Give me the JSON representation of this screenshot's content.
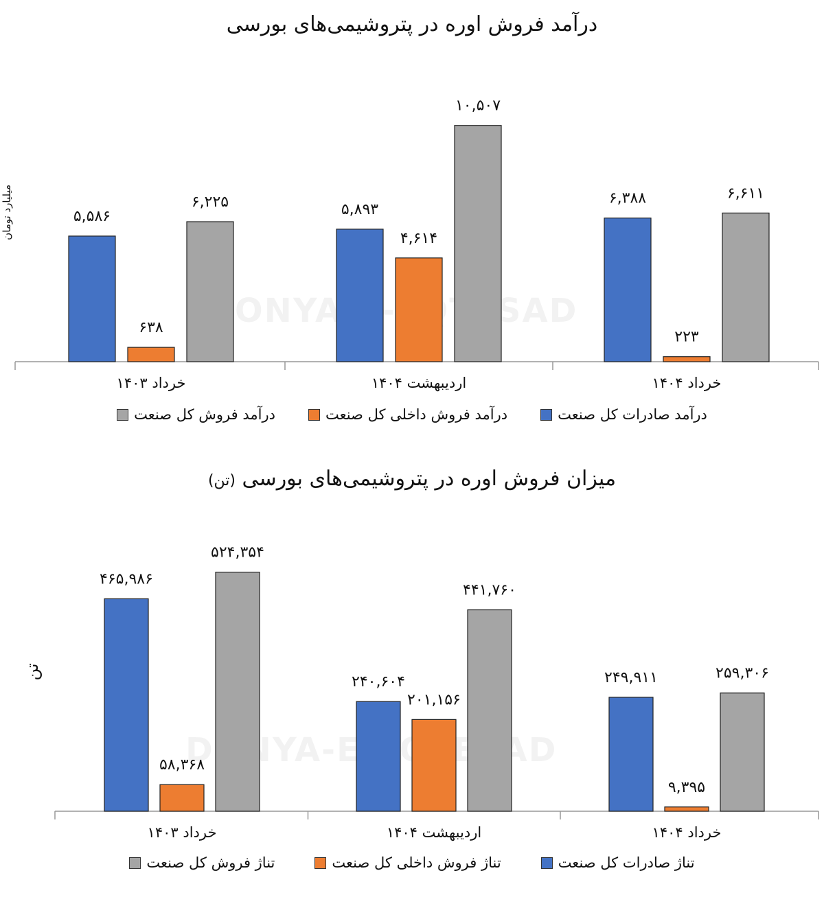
{
  "watermark": "DONYA-E-EQTESAD",
  "charts": [
    {
      "id": "chart1",
      "type": "bar",
      "title": "درآمد فروش اوره در پتروشیمی‌های بورسی",
      "title_unit": "",
      "ylabel": "میلیارد تومان",
      "categories": [
        "خرداد ۱۴۰۳",
        "اردیبهشت ۱۴۰۴",
        "خرداد ۱۴۰۴"
      ],
      "series": [
        {
          "name": "درآمد صادرات کل صنعت",
          "color": "#4472C4",
          "values": [
            5586,
            5893,
            6388
          ],
          "labels": [
            "۵,۵۸۶",
            "۵,۸۹۳",
            "۶,۳۸۸"
          ]
        },
        {
          "name": "درآمد فروش داخلی کل صنعت",
          "color": "#ED7D31",
          "values": [
            638,
            4614,
            223
          ],
          "labels": [
            "۶۳۸",
            "۴,۶۱۴",
            "۲۲۳"
          ]
        },
        {
          "name": "درآمد فروش کل صنعت",
          "color": "#A5A5A5",
          "values": [
            6225,
            10507,
            6611
          ],
          "labels": [
            "۶,۲۲۵",
            "۱۰,۵۰۷",
            "۶,۶۱۱"
          ]
        }
      ],
      "ylim": [
        0,
        11200
      ]
    },
    {
      "id": "chart2",
      "type": "bar",
      "title": "میزان فروش اوره در پتروشیمی‌های بورسی",
      "title_unit": "(تن)",
      "ylabel": "تن",
      "categories": [
        "خرداد ۱۴۰۳",
        "اردیبهشت ۱۴۰۴",
        "خرداد ۱۴۰۴"
      ],
      "series": [
        {
          "name": "تناژ صادرات کل صنعت",
          "color": "#4472C4",
          "values": [
            465986,
            240604,
            249911
          ],
          "labels": [
            "۴۶۵,۹۸۶",
            "۲۴۰,۶۰۴",
            "۲۴۹,۹۱۱"
          ]
        },
        {
          "name": "تناژ فروش داخلی کل صنعت",
          "color": "#ED7D31",
          "values": [
            58368,
            201156,
            9395
          ],
          "labels": [
            "۵۸,۳۶۸",
            "۲۰۱,۱۵۶",
            "۹,۳۹۵"
          ]
        },
        {
          "name": "تناژ فروش کل صنعت",
          "color": "#A5A5A5",
          "values": [
            524354,
            441760,
            259306
          ],
          "labels": [
            "۵۲۴,۳۵۴",
            "۴۴۱,۷۶۰",
            "۲۵۹,۳۰۶"
          ]
        }
      ],
      "ylim": [
        0,
        560000
      ]
    }
  ]
}
